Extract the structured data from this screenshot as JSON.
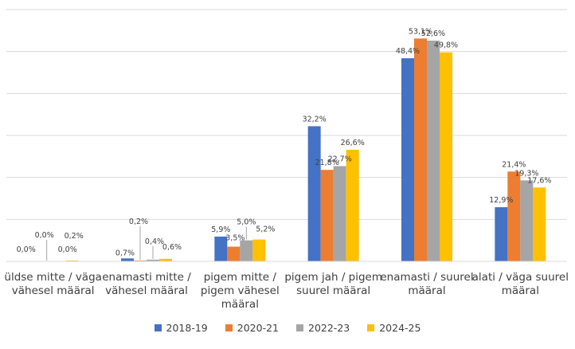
{
  "chart_data": {
    "type": "bar",
    "title": "",
    "xlabel": "",
    "ylabel": "",
    "ylim": [
      0,
      60
    ],
    "grid": true,
    "legend_position": "bottom",
    "categories": [
      [
        "üldse mitte / väga",
        "vähesel määral"
      ],
      [
        "enamasti mitte /",
        "vähesel määral"
      ],
      [
        "pigem mitte /",
        "pigem vähesel",
        "määral"
      ],
      [
        "pigem jah / pigem",
        "suurel määral"
      ],
      [
        "enamasti / suurel",
        "määral"
      ],
      [
        "alati / väga suurel",
        "määral"
      ]
    ],
    "series": [
      {
        "name": "2018-19",
        "color": "#4472C4",
        "values": [
          0.0,
          0.7,
          5.9,
          32.2,
          48.4,
          12.9
        ],
        "labels": [
          "0,0%",
          "0,7%",
          "5,9%",
          "32,2%",
          "48,4%",
          "12,9%"
        ]
      },
      {
        "name": "2020-21",
        "color": "#ED7D31",
        "values": [
          0.0,
          0.2,
          3.5,
          21.8,
          53.1,
          21.4
        ],
        "labels": [
          "0,0%",
          "0,2%",
          "3,5%",
          "21,8%",
          "53,1%",
          "21,4%"
        ]
      },
      {
        "name": "2022-23",
        "color": "#A5A5A5",
        "values": [
          0.0,
          0.4,
          5.0,
          22.7,
          52.6,
          19.3
        ],
        "labels": [
          "0,0%",
          "0,4%",
          "5,0%",
          "22,7%",
          "52,6%",
          "19,3%"
        ]
      },
      {
        "name": "2024-25",
        "color": "#FFC000",
        "values": [
          0.2,
          0.6,
          5.2,
          26.6,
          49.8,
          17.6
        ],
        "labels": [
          "0,2%",
          "0,6%",
          "5,2%",
          "26,6%",
          "49,8%",
          "17,6%"
        ]
      }
    ]
  }
}
